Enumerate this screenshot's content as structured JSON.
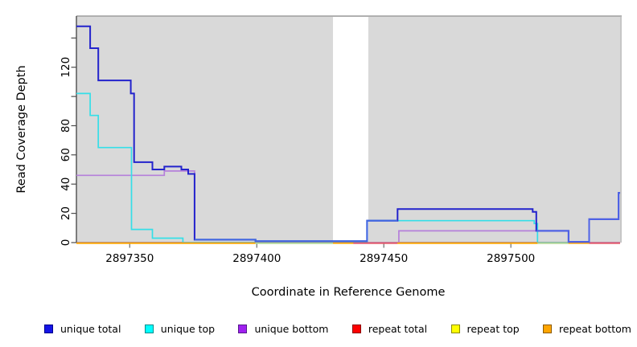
{
  "chart_data": {
    "type": "line",
    "subtype": "step-coverage",
    "title": "",
    "xlabel": "Coordinate in Reference Genome",
    "ylabel": "Read Coverage Depth",
    "xlim": [
      2897329,
      2897543
    ],
    "ylim": [
      0,
      155
    ],
    "grid": false,
    "plot_bg_color": "#d9d9d9",
    "gap_band": {
      "x1": 2897430.0,
      "x2": 2897443.9,
      "color": "#ffffff"
    },
    "x_ticks": [
      {
        "v": 2897350,
        "label": "2897350"
      },
      {
        "v": 2897400,
        "label": "2897400"
      },
      {
        "v": 2897450,
        "label": "2897450"
      },
      {
        "v": 2897500,
        "label": "2897500"
      }
    ],
    "y_ticks": [
      {
        "v": 0,
        "label": "0"
      },
      {
        "v": 20,
        "label": "20"
      },
      {
        "v": 40,
        "label": "40"
      },
      {
        "v": 60,
        "label": "60"
      },
      {
        "v": 80,
        "label": "80"
      },
      {
        "v": 100,
        "label": ""
      },
      {
        "v": 120,
        "label": "120"
      },
      {
        "v": 140,
        "label": ""
      }
    ],
    "series": [
      {
        "name": "unique total",
        "color": "#2323cc",
        "width": 2,
        "points": [
          [
            2897329,
            148
          ],
          [
            2897334.4,
            133
          ],
          [
            2897337.6,
            111
          ],
          [
            2897350.4,
            102
          ],
          [
            2897351.7,
            55
          ],
          [
            2897358.9,
            50
          ],
          [
            2897363.6,
            52
          ],
          [
            2897370.3,
            50
          ],
          [
            2897373,
            47
          ],
          [
            2897375.5,
            2
          ],
          [
            2897399.5,
            1
          ],
          [
            2897443.4,
            15
          ],
          [
            2897455.4,
            23
          ],
          [
            2897508.6,
            21
          ],
          [
            2897510,
            8
          ],
          [
            2897522.7,
            0.5
          ],
          [
            2897530.8,
            16
          ],
          [
            2897542.4,
            34
          ],
          [
            2897543,
            34
          ]
        ]
      },
      {
        "name": "unique top",
        "color": "#35dfe8",
        "width": 1.7,
        "points": [
          [
            2897329,
            102
          ],
          [
            2897334.4,
            87
          ],
          [
            2897337.6,
            65
          ],
          [
            2897350.7,
            9
          ],
          [
            2897358.9,
            3
          ],
          [
            2897370.9,
            0
          ],
          [
            2897443.4,
            15
          ],
          [
            2897509.2,
            13
          ],
          [
            2897510.5,
            0
          ],
          [
            2897530.8,
            16
          ],
          [
            2897542.4,
            34
          ],
          [
            2897543,
            34
          ]
        ]
      },
      {
        "name": "unique bottom",
        "color": "#b580da",
        "width": 1.7,
        "points": [
          [
            2897329,
            46
          ],
          [
            2897363.6,
            49
          ],
          [
            2897375.5,
            2
          ],
          [
            2897399.5,
            0
          ],
          [
            2897455.9,
            8
          ],
          [
            2897522.7,
            0
          ],
          [
            2897543,
            0
          ]
        ]
      },
      {
        "name": "repeat total",
        "color": "#e05575",
        "width": 1.5,
        "points": [
          [
            2897329,
            0
          ],
          [
            2897543,
            0
          ]
        ]
      },
      {
        "name": "repeat top",
        "color": "#e8e800",
        "width": 1.5,
        "points": [
          [
            2897329,
            0
          ],
          [
            2897543,
            0
          ]
        ]
      },
      {
        "name": "repeat bottom",
        "color": "#ffa500",
        "width": 1.7,
        "points": [
          [
            2897329,
            0
          ],
          [
            2897543,
            0
          ]
        ]
      }
    ],
    "zero_line_segments": [
      {
        "x1": 2897329,
        "x2": 2897399.4,
        "color": "#ffa500"
      },
      {
        "x1": 2897399.4,
        "x2": 2897430.0,
        "color": "#a9d9a0"
      },
      {
        "x1": 2897438.0,
        "x2": 2897455.4,
        "color": "#e05575"
      },
      {
        "x1": 2897455.4,
        "x2": 2897510.5,
        "color": "#ffa500"
      },
      {
        "x1": 2897510.5,
        "x2": 2897522.7,
        "color": "#a9d9a0"
      },
      {
        "x1": 2897530.8,
        "x2": 2897543,
        "color": "#e05575"
      }
    ],
    "highlight_segments": [
      {
        "color": "#4169e1",
        "width": 2,
        "points": [
          [
            2897375.5,
            2
          ],
          [
            2897399.5,
            1
          ],
          [
            2897443.4,
            15
          ],
          [
            2897455.4,
            15
          ]
        ]
      },
      {
        "color": "#4f63e6",
        "width": 2,
        "points": [
          [
            2897510,
            8
          ],
          [
            2897522.7,
            0.5
          ],
          [
            2897530.8,
            16
          ],
          [
            2897542.4,
            34
          ],
          [
            2897543,
            34
          ]
        ]
      }
    ],
    "legend": [
      {
        "label": "unique total",
        "fill": "#1414e6",
        "border": "#00008b"
      },
      {
        "label": "unique top",
        "fill": "#00ffff",
        "border": "#008b8b"
      },
      {
        "label": "unique bottom",
        "fill": "#a020f0",
        "border": "#551a8b"
      },
      {
        "label": "repeat total",
        "fill": "#ff0000",
        "border": "#8b0000"
      },
      {
        "label": "repeat top",
        "fill": "#ffff00",
        "border": "#8b8b00"
      },
      {
        "label": "repeat bottom",
        "fill": "#ffa500",
        "border": "#8b5a00"
      }
    ],
    "legend_position": "bottom"
  }
}
